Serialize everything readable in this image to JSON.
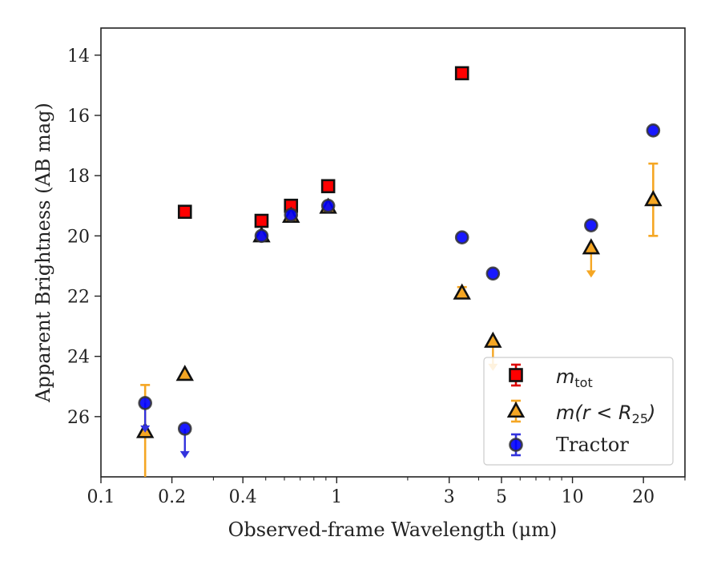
{
  "chart_data": {
    "type": "scatter",
    "xlabel": "Observed-frame Wavelength (μm)",
    "ylabel": "Apparent Brightness (AB mag)",
    "xscale": "log",
    "yaxis_inverted": true,
    "xlim": [
      0.1,
      30
    ],
    "ylim": [
      28,
      13.1
    ],
    "x_ticks": [
      0.1,
      0.2,
      0.4,
      1,
      3,
      5,
      10,
      20
    ],
    "x_tick_labels": [
      "0.1",
      "0.2",
      "0.4",
      "1",
      "3",
      "5",
      "10",
      "20"
    ],
    "y_ticks": [
      14,
      16,
      18,
      20,
      22,
      24,
      26
    ],
    "y_tick_labels": [
      "14",
      "16",
      "18",
      "20",
      "22",
      "24",
      "26"
    ],
    "grid": false,
    "legend_position": "bottom-right",
    "series": [
      {
        "name": "m_tot",
        "marker": "square",
        "color": "#ff0000",
        "errcolor": "#dd0000",
        "points": [
          {
            "x": 0.227,
            "y": 19.2
          },
          {
            "x": 0.48,
            "y": 19.5
          },
          {
            "x": 0.64,
            "y": 19.0
          },
          {
            "x": 0.92,
            "y": 18.35
          },
          {
            "x": 3.4,
            "y": 14.6
          }
        ]
      },
      {
        "name": "m(r<R25)",
        "marker": "triangle",
        "color": "#f5a623",
        "errcolor": "#f5a623",
        "points": [
          {
            "x": 0.154,
            "y": 26.5,
            "yerr_low": 24.95,
            "yerr_high": 28.0
          },
          {
            "x": 0.227,
            "y": 24.6
          },
          {
            "x": 0.48,
            "y": 20.0
          },
          {
            "x": 0.64,
            "y": 19.35
          },
          {
            "x": 0.92,
            "y": 19.05
          },
          {
            "x": 3.4,
            "y": 21.9,
            "yerr_low": 21.7,
            "yerr_high": 22.05
          },
          {
            "x": 4.6,
            "y": 23.5,
            "upper_limit": true
          },
          {
            "x": 12.0,
            "y": 20.4,
            "upper_limit": true
          },
          {
            "x": 22.0,
            "y": 18.8,
            "yerr_low": 17.6,
            "yerr_high": 20.0
          }
        ]
      },
      {
        "name": "Tractor",
        "marker": "circle",
        "color": "#0000ff",
        "errcolor": "#3333dd",
        "points": [
          {
            "x": 0.154,
            "y": 25.55,
            "upper_limit": true
          },
          {
            "x": 0.227,
            "y": 26.4,
            "upper_limit": true
          },
          {
            "x": 0.48,
            "y": 20.0
          },
          {
            "x": 0.64,
            "y": 19.3
          },
          {
            "x": 0.92,
            "y": 19.0
          },
          {
            "x": 3.4,
            "y": 20.05
          },
          {
            "x": 4.6,
            "y": 21.25
          },
          {
            "x": 12.0,
            "y": 19.65
          },
          {
            "x": 22.0,
            "y": 16.5
          }
        ]
      }
    ],
    "legend": {
      "entries": [
        {
          "label_main": "m",
          "label_sub": "tot"
        },
        {
          "label_main": "m(r < R",
          "label_sub": "25",
          "label_tail": ")"
        },
        {
          "label_main": "Tractor"
        }
      ]
    }
  }
}
